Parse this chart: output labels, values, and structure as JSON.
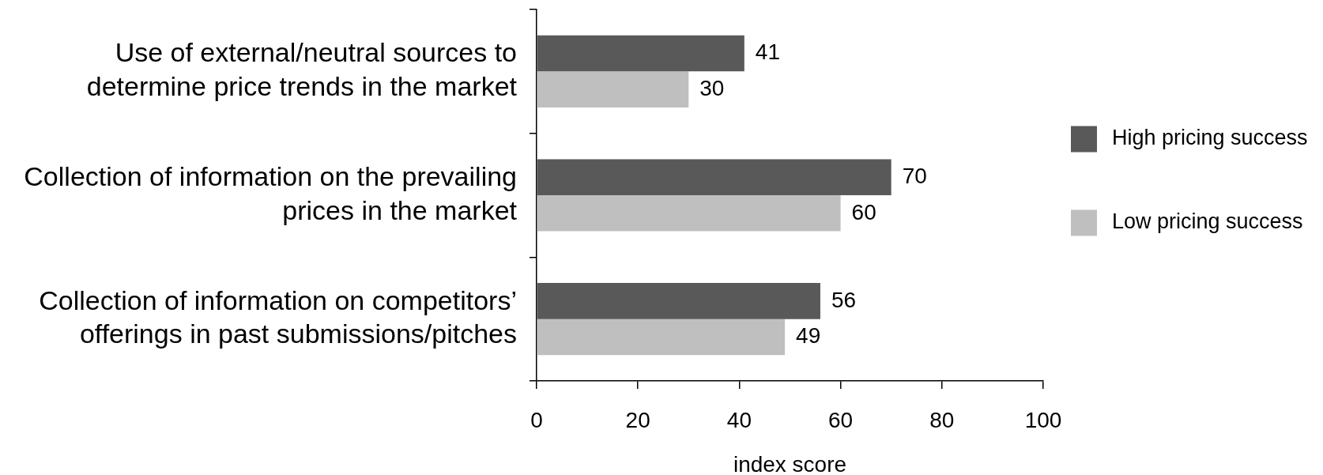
{
  "chart_data": {
    "type": "bar",
    "orientation": "horizontal",
    "categories": [
      "Use of external/neutral sources to determine price trends in the market",
      "Collection of information on the prevailing prices in the market",
      "Collection of information on competitors’ offerings in past submissions/pitches"
    ],
    "series": [
      {
        "name": "High pricing success",
        "color": "#595959",
        "values": [
          41,
          70,
          56
        ]
      },
      {
        "name": "Low pricing success",
        "color": "#bfbfbf",
        "values": [
          30,
          60,
          49
        ]
      }
    ],
    "xlabel": "index score",
    "xlim": [
      0,
      100
    ],
    "xticks": [
      0,
      20,
      40,
      60,
      80,
      100
    ],
    "grid": false,
    "legend": "right",
    "data_labels": true
  }
}
